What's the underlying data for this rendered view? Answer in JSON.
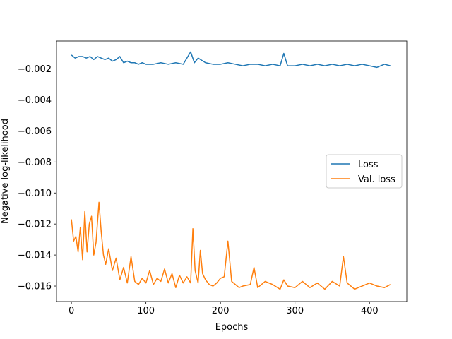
{
  "chart_data": {
    "type": "line",
    "xlabel": "Epochs",
    "ylabel": "Negative log-likelihood",
    "xlim": [
      -20,
      450
    ],
    "ylim": [
      -0.017,
      -0.0002
    ],
    "xticks": [
      0,
      100,
      200,
      300,
      400
    ],
    "xtick_labels": [
      "0",
      "100",
      "200",
      "300",
      "400"
    ],
    "yticks": [
      -0.016,
      -0.014,
      -0.012,
      -0.01,
      -0.008,
      -0.006,
      -0.004,
      -0.002
    ],
    "ytick_labels": [
      "−0.016",
      "−0.014",
      "−0.012",
      "−0.010",
      "−0.008",
      "−0.006",
      "−0.004",
      "−0.002"
    ],
    "grid": false,
    "legend_position": "center right",
    "series": [
      {
        "name": "Loss",
        "color": "#1f77b4",
        "x": [
          0,
          5,
          10,
          15,
          20,
          25,
          30,
          35,
          40,
          45,
          50,
          55,
          60,
          65,
          70,
          75,
          80,
          85,
          90,
          95,
          100,
          110,
          120,
          130,
          140,
          150,
          160,
          165,
          170,
          180,
          190,
          200,
          210,
          220,
          230,
          240,
          250,
          260,
          270,
          280,
          285,
          290,
          300,
          310,
          320,
          330,
          340,
          350,
          360,
          370,
          380,
          390,
          400,
          410,
          420,
          428
        ],
        "y": [
          -0.0011,
          -0.0013,
          -0.0012,
          -0.0012,
          -0.0013,
          -0.0012,
          -0.0014,
          -0.0012,
          -0.0013,
          -0.0014,
          -0.0013,
          -0.0015,
          -0.0014,
          -0.0012,
          -0.0016,
          -0.0015,
          -0.0016,
          -0.0016,
          -0.0017,
          -0.0016,
          -0.0017,
          -0.0017,
          -0.0016,
          -0.0017,
          -0.0016,
          -0.0017,
          -0.0009,
          -0.0016,
          -0.0013,
          -0.0016,
          -0.0017,
          -0.0017,
          -0.0016,
          -0.0017,
          -0.0018,
          -0.0017,
          -0.0017,
          -0.0018,
          -0.0017,
          -0.0018,
          -0.001,
          -0.0018,
          -0.0018,
          -0.0017,
          -0.0018,
          -0.0017,
          -0.0018,
          -0.0017,
          -0.0018,
          -0.0017,
          -0.0018,
          -0.0017,
          -0.0018,
          -0.0019,
          -0.0017,
          -0.0018
        ]
      },
      {
        "name": "Val. loss",
        "color": "#ff7f0e",
        "x": [
          0,
          3,
          6,
          9,
          12,
          15,
          18,
          21,
          24,
          27,
          30,
          33,
          37,
          40,
          43,
          46,
          50,
          55,
          60,
          65,
          70,
          75,
          80,
          85,
          90,
          95,
          100,
          105,
          110,
          115,
          120,
          125,
          130,
          135,
          140,
          145,
          150,
          155,
          160,
          163,
          166,
          170,
          173,
          176,
          180,
          185,
          190,
          195,
          200,
          205,
          210,
          215,
          220,
          225,
          230,
          240,
          245,
          250,
          260,
          270,
          280,
          285,
          290,
          300,
          310,
          320,
          330,
          340,
          350,
          360,
          365,
          370,
          380,
          390,
          400,
          410,
          420,
          428
        ],
        "y": [
          -0.0117,
          -0.0131,
          -0.0128,
          -0.0138,
          -0.0122,
          -0.0143,
          -0.0112,
          -0.0138,
          -0.012,
          -0.0115,
          -0.014,
          -0.0132,
          -0.0106,
          -0.0125,
          -0.014,
          -0.0146,
          -0.0136,
          -0.015,
          -0.0142,
          -0.0156,
          -0.0148,
          -0.0158,
          -0.0141,
          -0.0157,
          -0.0159,
          -0.0155,
          -0.0158,
          -0.015,
          -0.0159,
          -0.0155,
          -0.0157,
          -0.0149,
          -0.0158,
          -0.0152,
          -0.0161,
          -0.0153,
          -0.0158,
          -0.0154,
          -0.0158,
          -0.0123,
          -0.015,
          -0.0158,
          -0.0137,
          -0.0152,
          -0.0156,
          -0.0159,
          -0.016,
          -0.0158,
          -0.0155,
          -0.0154,
          -0.0131,
          -0.0157,
          -0.0159,
          -0.0161,
          -0.016,
          -0.0159,
          -0.0148,
          -0.0161,
          -0.0157,
          -0.0159,
          -0.0162,
          -0.0156,
          -0.016,
          -0.0161,
          -0.0157,
          -0.0161,
          -0.0158,
          -0.0162,
          -0.0157,
          -0.016,
          -0.0141,
          -0.0158,
          -0.0162,
          -0.016,
          -0.0158,
          -0.016,
          -0.0161,
          -0.0159
        ]
      }
    ]
  }
}
